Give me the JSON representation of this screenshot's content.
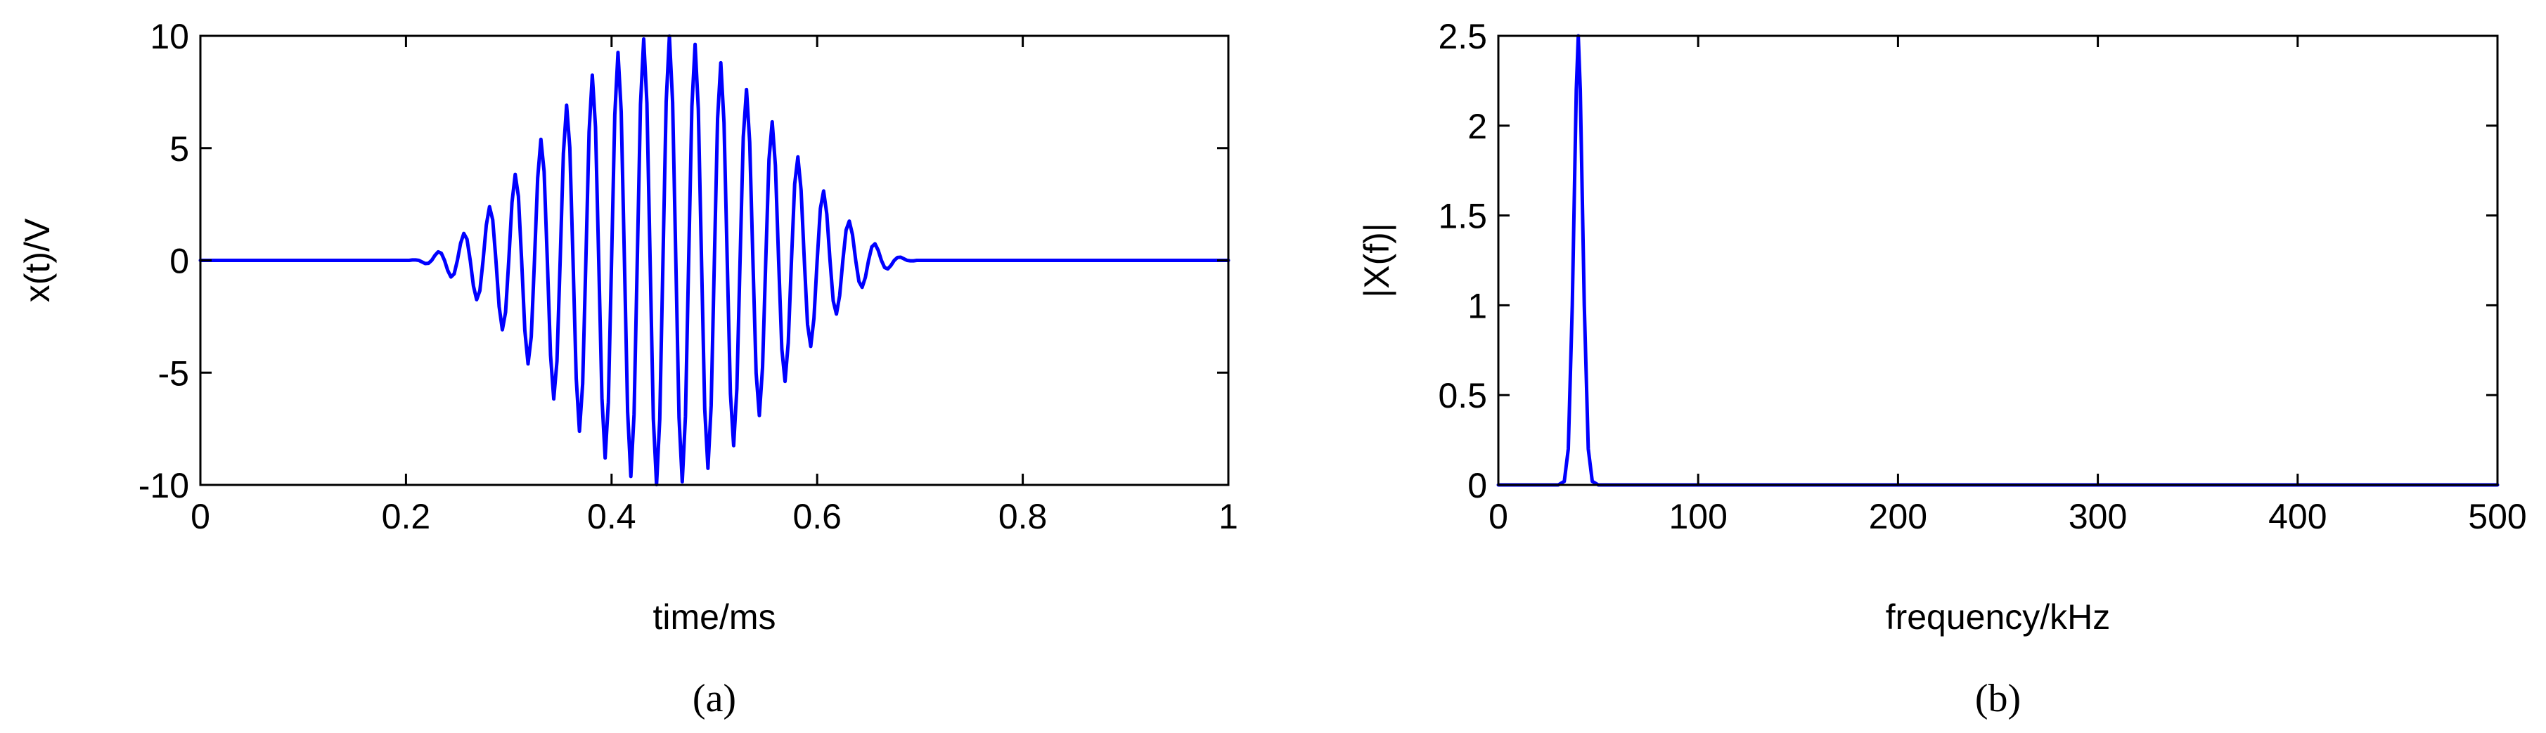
{
  "chart_data": [
    {
      "type": "line",
      "caption": "(a)",
      "x_label": "time/ms",
      "y_label": "x(t)/V",
      "color": "#0000ff",
      "xlim": [
        0,
        1
      ],
      "xticks": [
        0,
        0.2,
        0.4,
        0.6,
        0.8,
        1
      ],
      "ylim": [
        -10,
        10
      ],
      "yticks": [
        -10,
        -5,
        0,
        5,
        10
      ],
      "x": [
        0,
        0.2,
        0.203125,
        0.20625,
        0.209375,
        0.2125,
        0.215625,
        0.21875,
        0.221875,
        0.225,
        0.228125,
        0.23125,
        0.234375,
        0.2375,
        0.240625,
        0.24375,
        0.246875,
        0.25,
        0.253125,
        0.25625,
        0.259375,
        0.2625,
        0.265625,
        0.26875,
        0.271875,
        0.275,
        0.278125,
        0.28125,
        0.284375,
        0.2875,
        0.290625,
        0.29375,
        0.296875,
        0.3,
        0.303125,
        0.30625,
        0.309375,
        0.3125,
        0.315625,
        0.31875,
        0.321875,
        0.325,
        0.328125,
        0.33125,
        0.334375,
        0.3375,
        0.340625,
        0.34375,
        0.346875,
        0.35,
        0.353125,
        0.35625,
        0.359375,
        0.3625,
        0.365625,
        0.36875,
        0.371875,
        0.375,
        0.378125,
        0.38125,
        0.384375,
        0.3875,
        0.390625,
        0.39375,
        0.396875,
        0.4,
        0.403125,
        0.40625,
        0.409375,
        0.4125,
        0.415625,
        0.41875,
        0.421875,
        0.425,
        0.428125,
        0.43125,
        0.434375,
        0.4375,
        0.440625,
        0.44375,
        0.446875,
        0.45,
        0.453125,
        0.45625,
        0.459375,
        0.4625,
        0.465625,
        0.46875,
        0.471875,
        0.475,
        0.478125,
        0.48125,
        0.484375,
        0.4875,
        0.490625,
        0.49375,
        0.496875,
        0.5,
        0.503125,
        0.50625,
        0.509375,
        0.5125,
        0.515625,
        0.51875,
        0.521875,
        0.525,
        0.528125,
        0.53125,
        0.534375,
        0.5375,
        0.540625,
        0.54375,
        0.546875,
        0.55,
        0.553125,
        0.55625,
        0.559375,
        0.5625,
        0.565625,
        0.56875,
        0.571875,
        0.575,
        0.578125,
        0.58125,
        0.584375,
        0.5875,
        0.590625,
        0.59375,
        0.596875,
        0.6,
        0.603125,
        0.60625,
        0.609375,
        0.6125,
        0.615625,
        0.61875,
        0.621875,
        0.625,
        0.628125,
        0.63125,
        0.634375,
        0.6375,
        0.640625,
        0.64375,
        0.646875,
        0.65,
        0.653125,
        0.65625,
        0.659375,
        0.6625,
        0.665625,
        0.66875,
        0.671875,
        0.675,
        0.678125,
        0.68125,
        0.684375,
        0.6875,
        0.690625,
        0.69375,
        0.696875,
        0.7,
        1
      ],
      "values": [
        0,
        0,
        0,
        0.02,
        0.02,
        0,
        -0.07,
        -0.14,
        -0.13,
        0,
        0.22,
        0.38,
        0.32,
        0,
        -0.45,
        -0.74,
        -0.6,
        0,
        0.76,
        1.2,
        0.94,
        0,
        -1.14,
        -1.75,
        -1.35,
        0,
        1.57,
        2.39,
        1.81,
        0,
        -2.06,
        -3.09,
        -2.31,
        0,
        2.58,
        3.83,
        2.85,
        0,
        -3.12,
        -4.61,
        -3.4,
        0,
        3.67,
        5.39,
        3.95,
        0,
        -4.22,
        -6.17,
        -4.49,
        0,
        4.76,
        6.91,
        5.02,
        0,
        -5.26,
        -7.61,
        -5.5,
        0,
        5.72,
        8.25,
        5.94,
        0,
        -6.13,
        -8.8,
        -6.31,
        0,
        6.47,
        9.26,
        6.62,
        0,
        -6.75,
        -9.62,
        -6.85,
        0,
        6.94,
        9.86,
        7,
        0,
        -7.05,
        -9.99,
        -7.07,
        0,
        7.07,
        9.99,
        7.05,
        0,
        -7,
        -9.86,
        -6.94,
        0,
        6.85,
        9.62,
        6.75,
        0,
        -6.62,
        -9.26,
        -6.47,
        0,
        6.31,
        8.8,
        6.13,
        0,
        -5.94,
        -8.25,
        -5.72,
        0,
        5.5,
        7.61,
        5.26,
        0,
        -5.02,
        -6.91,
        -4.76,
        0,
        4.49,
        6.17,
        4.22,
        0,
        -3.95,
        -5.39,
        -3.67,
        0,
        3.4,
        4.61,
        3.12,
        0,
        -2.85,
        -3.83,
        -2.58,
        0,
        2.31,
        3.09,
        2.06,
        0,
        -1.81,
        -2.39,
        -1.57,
        0,
        1.35,
        1.75,
        1.14,
        0,
        -0.94,
        -1.2,
        -0.76,
        0,
        0.6,
        0.74,
        0.45,
        0,
        -0.32,
        -0.38,
        -0.22,
        0,
        0.13,
        0.14,
        0.07,
        0,
        -0.02,
        -0.02,
        0,
        0,
        0
      ]
    },
    {
      "type": "line",
      "caption": "(b)",
      "x_label": "frequency/kHz",
      "y_label": "|X(f)|",
      "color": "#0000ff",
      "xlim": [
        0,
        500
      ],
      "xticks": [
        0,
        100,
        200,
        300,
        400,
        500
      ],
      "ylim": [
        0,
        2.5
      ],
      "yticks": [
        0,
        0.5,
        1,
        1.5,
        2,
        2.5
      ],
      "x": [
        0,
        30,
        33,
        35,
        37,
        39,
        40,
        41,
        43,
        45,
        47,
        50,
        500
      ],
      "values": [
        0,
        0,
        0.02,
        0.2,
        1.0,
        2.2,
        2.5,
        2.2,
        1.0,
        0.2,
        0.02,
        0,
        0
      ]
    }
  ]
}
